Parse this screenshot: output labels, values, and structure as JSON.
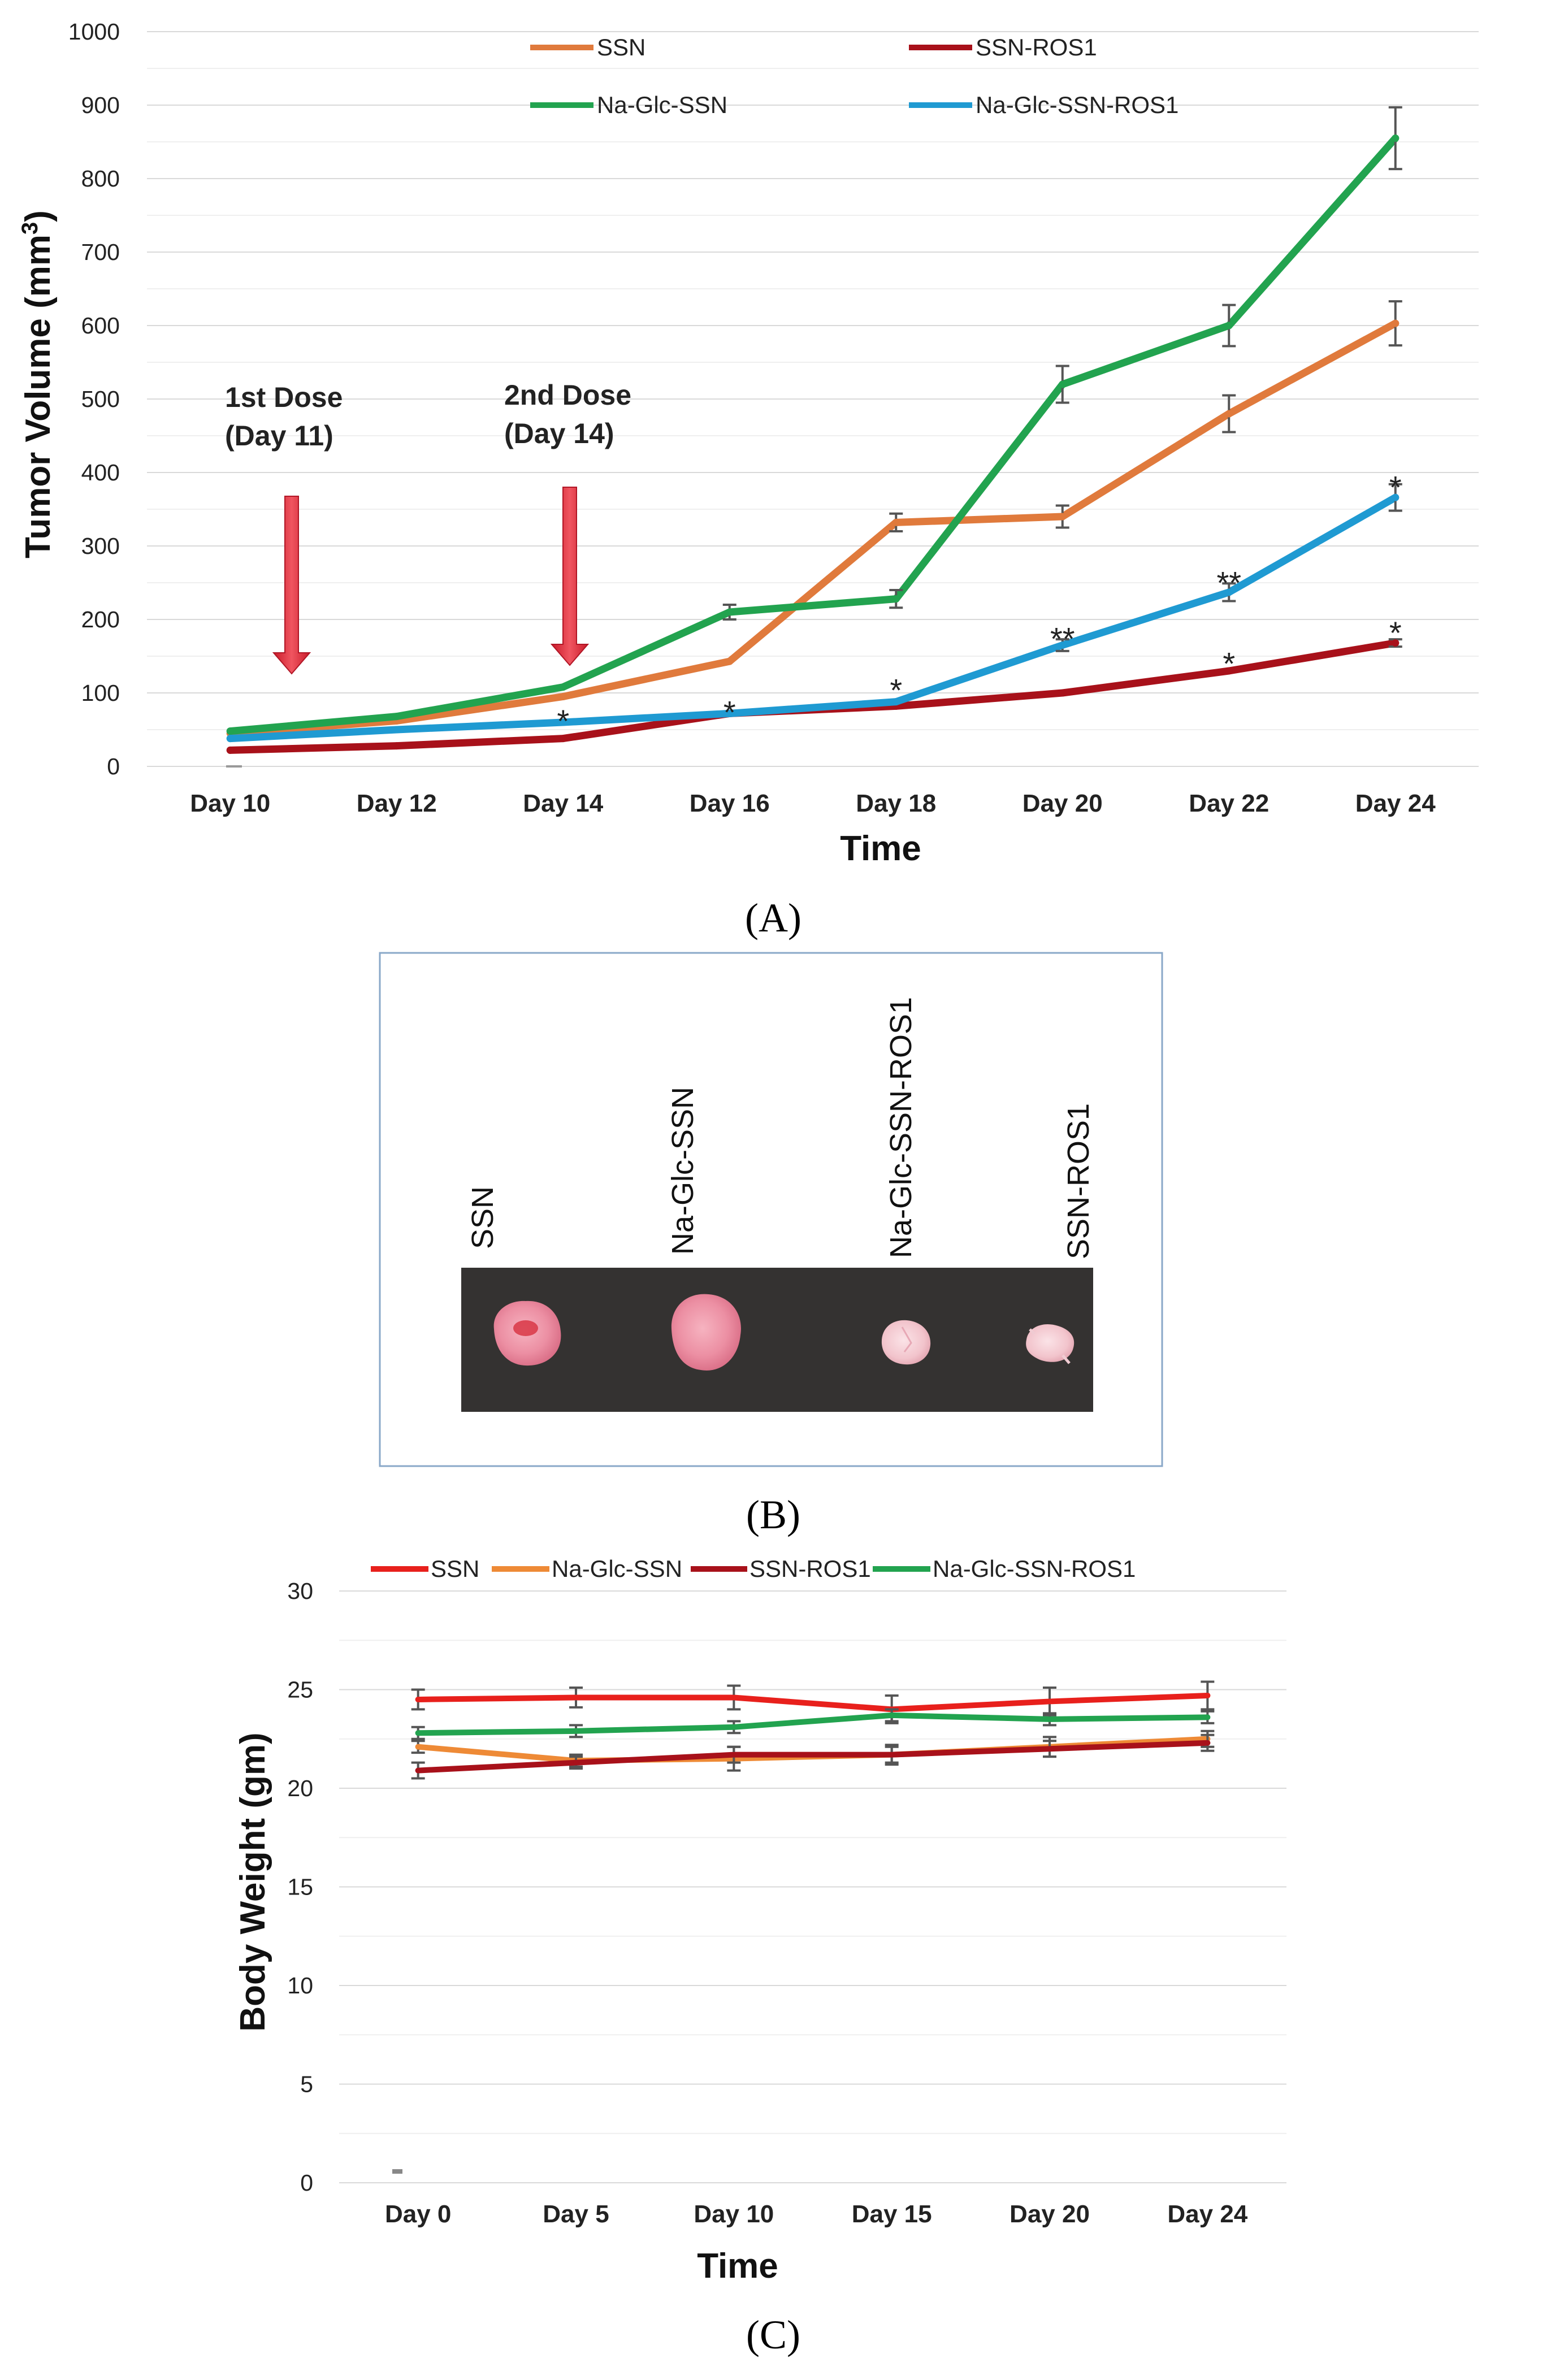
{
  "chart_data": [
    {
      "type": "line",
      "panel_label": "(A)",
      "xlabel": "Time",
      "ylabel": "Tumor Volume (mm³)",
      "ylabel_main": "Tumor Volume (mm",
      "ylabel_sup": "3",
      "ylabel_end": ")",
      "ylim": [
        0,
        1000
      ],
      "yticks": [
        0,
        100,
        200,
        300,
        400,
        500,
        600,
        700,
        800,
        900,
        1000
      ],
      "categories": [
        "Day 10",
        "Day 12",
        "Day 14",
        "Day 16",
        "Day 18",
        "Day 20",
        "Day 22",
        "Day 24"
      ],
      "legend": "top",
      "series": [
        {
          "name": "SSN",
          "color": "#e07a3c",
          "values": [
            45,
            62,
            95,
            143,
            332,
            340,
            480,
            603
          ],
          "errors": [
            0,
            0,
            0,
            0,
            12,
            15,
            25,
            30
          ]
        },
        {
          "name": "SSN-ROS1",
          "color": "#a8111a",
          "values": [
            22,
            28,
            38,
            72,
            82,
            100,
            130,
            168
          ],
          "errors": [
            0,
            0,
            0,
            0,
            0,
            0,
            0,
            5
          ]
        },
        {
          "name": "Na-Glc-SSN",
          "color": "#22a34f",
          "values": [
            48,
            68,
            108,
            210,
            228,
            520,
            600,
            855
          ],
          "errors": [
            0,
            0,
            0,
            10,
            12,
            25,
            28,
            42
          ]
        },
        {
          "name": "Na-Glc-SSN-ROS1",
          "color": "#1f9ad2",
          "values": [
            38,
            50,
            60,
            72,
            88,
            165,
            237,
            366
          ],
          "errors": [
            0,
            0,
            0,
            0,
            0,
            8,
            12,
            18
          ]
        }
      ],
      "annotations": {
        "dose1": {
          "line1": "1st Dose",
          "line2": "(Day 11)"
        },
        "dose2": {
          "line1": "2nd Dose",
          "line2": "(Day 14)"
        },
        "significance": [
          {
            "category": "Day 14",
            "value": 70,
            "text": "*"
          },
          {
            "category": "Day 16",
            "value": 82,
            "text": "*"
          },
          {
            "category": "Day 18",
            "value": 112,
            "text": "*"
          },
          {
            "category": "Day 20",
            "value": 182,
            "text": "**"
          },
          {
            "category": "Day 22",
            "value": 258,
            "text": "**"
          },
          {
            "category": "Day 22",
            "value": 148,
            "text": "*"
          },
          {
            "category": "Day 24",
            "value": 388,
            "text": "*"
          },
          {
            "category": "Day 24",
            "value": 190,
            "text": "*"
          }
        ]
      }
    },
    {
      "type": "line",
      "panel_label": "(C)",
      "xlabel": "Time",
      "ylabel": "Body Weight (gm)",
      "ylim": [
        0,
        30
      ],
      "yticks": [
        0,
        5,
        10,
        15,
        20,
        25,
        30
      ],
      "categories": [
        "Day 0",
        "Day 5",
        "Day 10",
        "Day 15",
        "Day 20",
        "Day 24"
      ],
      "legend": "top",
      "series": [
        {
          "name": "SSN",
          "color": "#e8201c",
          "values": [
            24.5,
            24.6,
            24.6,
            24.0,
            24.4,
            24.7
          ],
          "errors": [
            0.5,
            0.5,
            0.6,
            0.7,
            0.7,
            0.7
          ]
        },
        {
          "name": "Na-Glc-SSN",
          "color": "#ee8a36",
          "values": [
            22.1,
            21.4,
            21.5,
            21.7,
            22.1,
            22.5
          ],
          "errors": [
            0.3,
            0.3,
            0.6,
            0.5,
            0.5,
            0.4
          ]
        },
        {
          "name": "SSN-ROS1",
          "color": "#a8111a",
          "values": [
            20.9,
            21.3,
            21.7,
            21.7,
            22.0,
            22.3
          ],
          "errors": [
            0.4,
            0.3,
            0.4,
            0.4,
            0.4,
            0.4
          ]
        },
        {
          "name": "Na-Glc-SSN-ROS1",
          "color": "#22a34f",
          "values": [
            22.8,
            22.9,
            23.1,
            23.7,
            23.5,
            23.6
          ],
          "errors": [
            0.3,
            0.3,
            0.3,
            0.3,
            0.3,
            0.3
          ]
        }
      ]
    }
  ],
  "panel_b": {
    "panel_label": "(B)",
    "labels": [
      "SSN",
      "Na-Glc-SSN",
      "Na-Glc-SSN-ROS1",
      "SSN-ROS1"
    ]
  }
}
